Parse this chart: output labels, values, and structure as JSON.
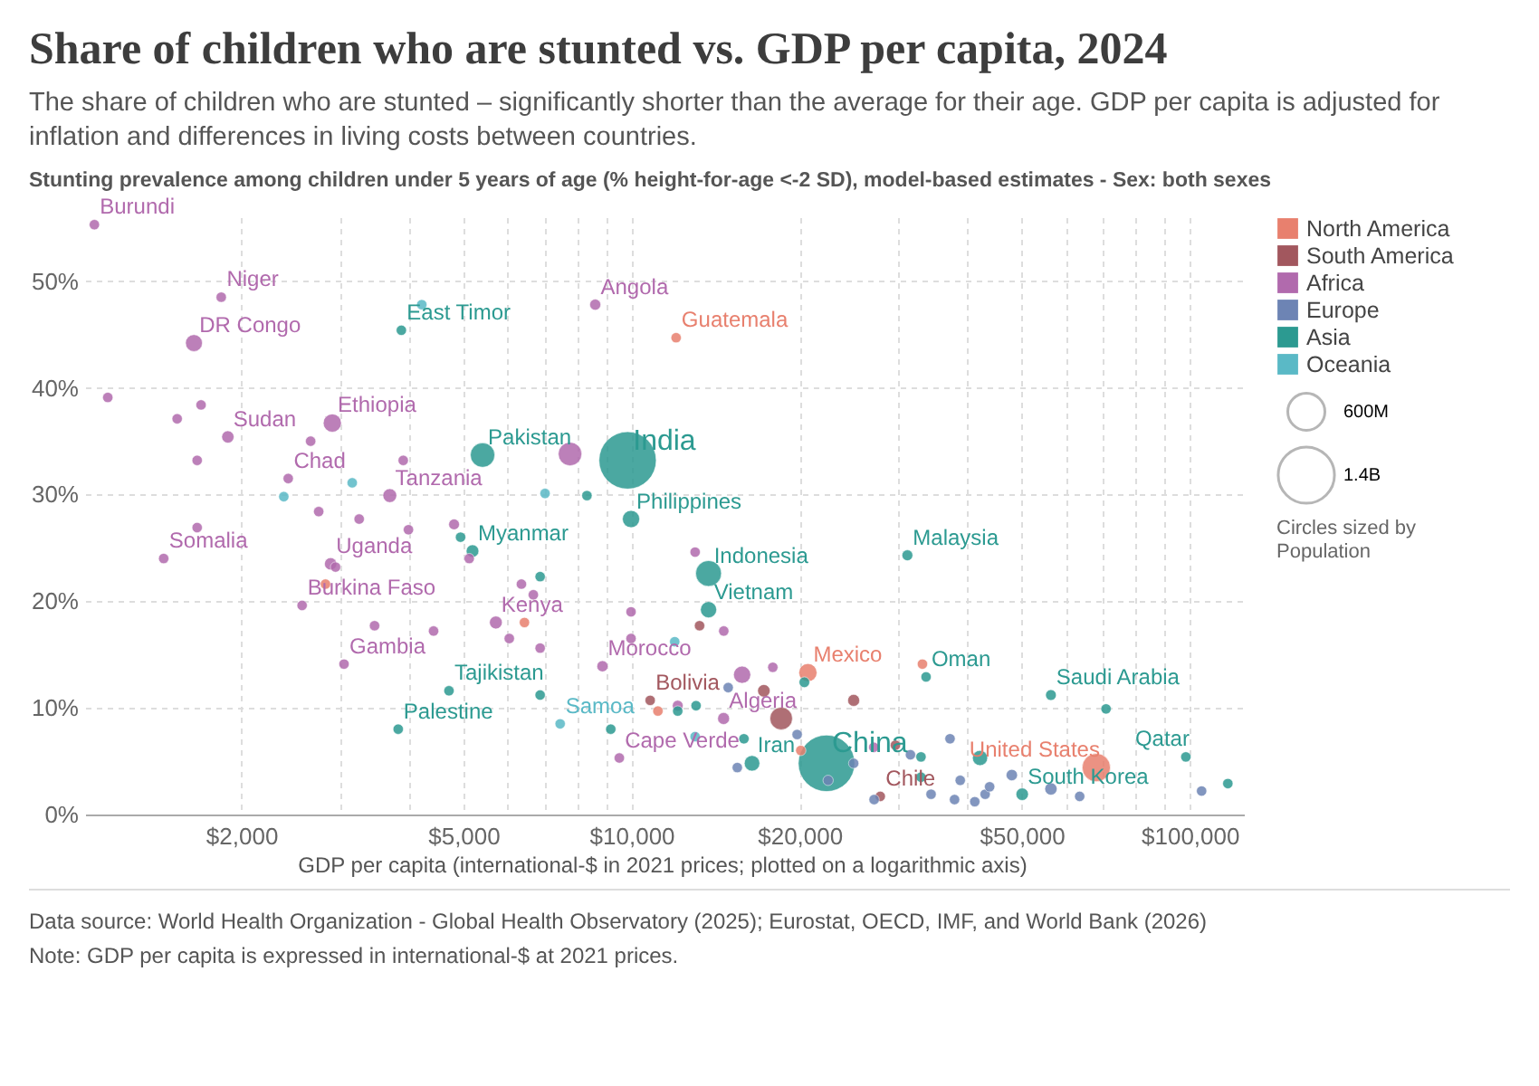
{
  "chart_data": {
    "type": "bubble",
    "title": "Share of children who are stunted vs. GDP per capita, 2024",
    "subtitle": "The share of children who are stunted – significantly shorter than the average for their age. GDP per capita is adjusted for inflation and differences in living costs between countries.",
    "ylabel": "Stunting prevalence among children under 5 years of age (% height-for-age <-2 SD), model-based estimates - Sex: both sexes",
    "xlabel": "GDP per capita (international-$ in 2021 prices; plotted on a logarithmic axis)",
    "log": "x",
    "grid": true,
    "legend": "right",
    "marker": "circle",
    "xlim": [
      1050,
      125000
    ],
    "xticks": [
      {
        "value": 2000,
        "label": "$2,000"
      },
      {
        "value": 3000,
        "label": null
      },
      {
        "value": 4000,
        "label": null
      },
      {
        "value": 5000,
        "label": "$5,000"
      },
      {
        "value": 6000,
        "label": null
      },
      {
        "value": 7000,
        "label": null
      },
      {
        "value": 8000,
        "label": null
      },
      {
        "value": 9000,
        "label": null
      },
      {
        "value": 10000,
        "label": "$10,000"
      },
      {
        "value": 20000,
        "label": "$20,000"
      },
      {
        "value": 30000,
        "label": null
      },
      {
        "value": 40000,
        "label": null
      },
      {
        "value": 50000,
        "label": "$50,000"
      },
      {
        "value": 60000,
        "label": null
      },
      {
        "value": 70000,
        "label": null
      },
      {
        "value": 80000,
        "label": null
      },
      {
        "value": 90000,
        "label": null
      },
      {
        "value": 100000,
        "label": "$100,000"
      }
    ],
    "ylim": [
      0,
      56
    ],
    "yticks": [
      {
        "value": 0,
        "label": "0%"
      },
      {
        "value": 10,
        "label": "10%"
      },
      {
        "value": 20,
        "label": "20%"
      },
      {
        "value": 30,
        "label": "30%"
      },
      {
        "value": 40,
        "label": "40%"
      },
      {
        "value": 50,
        "label": "50%"
      }
    ],
    "size_legend": [
      {
        "value": 600,
        "label": "600M"
      },
      {
        "value": 1400,
        "label": "1.4B"
      }
    ],
    "series": [
      {
        "name": "North America",
        "color": "#e8806e",
        "x": [
          12020,
          20700,
          68000,
          33200,
          2830,
          6430,
          11150,
          20100
        ],
        "values": [
          44.7,
          13.3,
          4.4,
          14.1,
          21.6,
          18.0,
          9.7,
          6.0
        ],
        "sizes": [
          30,
          130,
          340,
          30,
          30,
          30,
          30,
          30
        ]
      },
      {
        "name": "South America",
        "color": "#a2575e",
        "x": [
          10800,
          27900,
          18540,
          17260,
          25000,
          13240,
          29700
        ],
        "values": [
          10.7,
          1.7,
          9.0,
          11.6,
          10.7,
          17.7,
          6.5
        ],
        "sizes": [
          30,
          30,
          210,
          52,
          46,
          30,
          30
        ]
      },
      {
        "name": "Africa",
        "color": "#b16aad",
        "x": [
          1091,
          1841,
          1645,
          1892,
          2911,
          2427,
          3690,
          1452,
          2891,
          2570,
          3055,
          8610,
          7760,
          5715,
          8870,
          14620,
          9510,
          13000,
          15780,
          1153,
          1535,
          1694,
          1667,
          1667,
          2662,
          3900,
          2752,
          3252,
          3985,
          3465,
          4420,
          4810,
          5120,
          6350,
          6670,
          6040,
          6860,
          9980,
          9980,
          12100,
          14630,
          17910,
          27160,
          2950
        ],
        "values": [
          55.3,
          48.5,
          44.2,
          35.4,
          36.7,
          31.5,
          29.9,
          24.0,
          23.5,
          19.6,
          14.1,
          47.8,
          33.8,
          18.0,
          13.9,
          9.0,
          5.3,
          24.6,
          13.1,
          39.1,
          37.1,
          38.4,
          33.2,
          26.9,
          35.0,
          33.2,
          28.4,
          27.7,
          26.7,
          17.7,
          17.2,
          27.2,
          24.0,
          21.6,
          20.6,
          16.5,
          15.6,
          19.0,
          16.5,
          10.2,
          17.2,
          13.8,
          6.3,
          23.2
        ],
        "sizes": [
          30,
          30,
          110,
          50,
          130,
          30,
          68,
          30,
          50,
          30,
          30,
          37,
          230,
          56,
          38,
          46,
          30,
          30,
          115,
          30,
          30,
          30,
          30,
          30,
          30,
          30,
          30,
          30,
          30,
          30,
          30,
          34,
          30,
          30,
          30,
          30,
          30,
          30,
          30,
          34,
          30,
          30,
          30,
          30
        ]
      },
      {
        "name": "Europe",
        "color": "#6d84b4",
        "x": [
          19800,
          25000,
          27200,
          31600,
          34400,
          37200,
          37900,
          38800,
          41200,
          43000,
          43800,
          48000,
          56400,
          63500,
          105000,
          15470,
          14900,
          22500
        ],
        "values": [
          7.5,
          4.8,
          1.4,
          5.6,
          1.9,
          7.1,
          1.4,
          3.2,
          1.2,
          1.9,
          2.6,
          3.7,
          2.4,
          1.7,
          2.2,
          4.4,
          11.9,
          3.2
        ],
        "sizes": [
          30,
          30,
          30,
          30,
          30,
          30,
          30,
          30,
          30,
          30,
          30,
          40,
          50,
          30,
          30,
          30,
          30,
          30
        ]
      },
      {
        "name": "Asia",
        "color": "#2c9a91",
        "x": [
          9840,
          5410,
          3870,
          9980,
          5190,
          4940,
          13740,
          13740,
          31200,
          4710,
          3820,
          22350,
          16440,
          33700,
          56400,
          98400,
          50100,
          20400,
          33000,
          33000,
          42100,
          70800,
          117000,
          8320,
          6860,
          6860,
          9180,
          12100,
          13050,
          15900
        ],
        "values": [
          33.2,
          33.7,
          45.4,
          27.7,
          24.7,
          26.0,
          22.6,
          19.2,
          24.3,
          11.6,
          8.0,
          4.8,
          4.8,
          12.9,
          11.2,
          5.4,
          1.9,
          12.4,
          5.4,
          3.5,
          5.3,
          9.9,
          2.9,
          29.9,
          22.3,
          11.2,
          8.0,
          9.7,
          10.2,
          7.1
        ],
        "sizes": [
          1450,
          250,
          30,
          115,
          54,
          30,
          280,
          100,
          35,
          30,
          30,
          1410,
          90,
          30,
          34,
          30,
          52,
          33,
          30,
          30,
          85,
          30,
          30,
          30,
          30,
          30,
          30,
          30,
          30,
          30
        ]
      },
      {
        "name": "Oceania",
        "color": "#5ab9c6",
        "x": [
          7450,
          4210,
          2383,
          3160,
          7000,
          11950,
          13000
        ],
        "values": [
          8.5,
          47.8,
          29.8,
          31.1,
          30.1,
          16.2,
          7.3
        ],
        "sizes": [
          30,
          30,
          30,
          30,
          30,
          30,
          30
        ]
      }
    ],
    "annotations": [
      "Circles sized by Population",
      "Data source: World Health Organization - Global Health Observatory (2025); Eurostat, OECD, IMF, and World Bank (2026)",
      "Note: GDP per capita is expressed in international-$ at 2021 prices.",
      {
        "text": "Burundi",
        "x": 1091,
        "y": 55.3
      },
      {
        "text": "Niger",
        "x": 1841,
        "y": 48.5
      },
      {
        "text": "DR Congo",
        "x": 1645,
        "y": 44.2
      },
      {
        "text": "Sudan",
        "x": 1892,
        "y": 35.4
      },
      {
        "text": "Ethiopia",
        "x": 2911,
        "y": 36.7
      },
      {
        "text": "Chad",
        "x": 2427,
        "y": 31.5
      },
      {
        "text": "Tanzania",
        "x": 3690,
        "y": 29.9
      },
      {
        "text": "Somalia",
        "x": 1452,
        "y": 24.0
      },
      {
        "text": "Uganda",
        "x": 2891,
        "y": 23.5
      },
      {
        "text": "Burkina Faso",
        "x": 2570,
        "y": 19.6
      },
      {
        "text": "Gambia",
        "x": 3055,
        "y": 14.1
      },
      {
        "text": "Angola",
        "x": 8610,
        "y": 47.8
      },
      {
        "text": "Kenya",
        "x": 5715,
        "y": 18.0
      },
      {
        "text": "Morocco",
        "x": 8870,
        "y": 13.9
      },
      {
        "text": "Algeria",
        "x": 14620,
        "y": 9.0
      },
      {
        "text": "Cape Verde",
        "x": 9510,
        "y": 5.3
      },
      {
        "text": "East Timor",
        "x": 3870,
        "y": 45.4
      },
      {
        "text": "Pakistan",
        "x": 5410,
        "y": 33.7
      },
      {
        "text": "India",
        "x": 9840,
        "y": 33.2
      },
      {
        "text": "Philippines",
        "x": 9980,
        "y": 27.7
      },
      {
        "text": "Myanmar",
        "x": 5190,
        "y": 24.7
      },
      {
        "text": "Indonesia",
        "x": 13740,
        "y": 22.6
      },
      {
        "text": "Vietnam",
        "x": 13740,
        "y": 19.2
      },
      {
        "text": "Malaysia",
        "x": 31200,
        "y": 24.3
      },
      {
        "text": "Tajikistan",
        "x": 4710,
        "y": 11.6
      },
      {
        "text": "Palestine",
        "x": 3820,
        "y": 8.0
      },
      {
        "text": "China",
        "x": 22350,
        "y": 4.8
      },
      {
        "text": "Iran",
        "x": 16440,
        "y": 4.8
      },
      {
        "text": "Oman",
        "x": 33700,
        "y": 12.9
      },
      {
        "text": "Saudi Arabia",
        "x": 56400,
        "y": 11.2
      },
      {
        "text": "Qatar",
        "x": 98400,
        "y": 5.4
      },
      {
        "text": "South Korea",
        "x": 50100,
        "y": 1.9
      },
      {
        "text": "Samoa",
        "x": 7450,
        "y": 8.5
      },
      {
        "text": "Guatemala",
        "x": 12020,
        "y": 44.7
      },
      {
        "text": "Mexico",
        "x": 20700,
        "y": 13.3
      },
      {
        "text": "United States",
        "x": 68000,
        "y": 4.4
      },
      {
        "text": "Bolivia",
        "x": 10800,
        "y": 10.7
      },
      {
        "text": "Chile",
        "x": 27900,
        "y": 1.7
      }
    ]
  }
}
